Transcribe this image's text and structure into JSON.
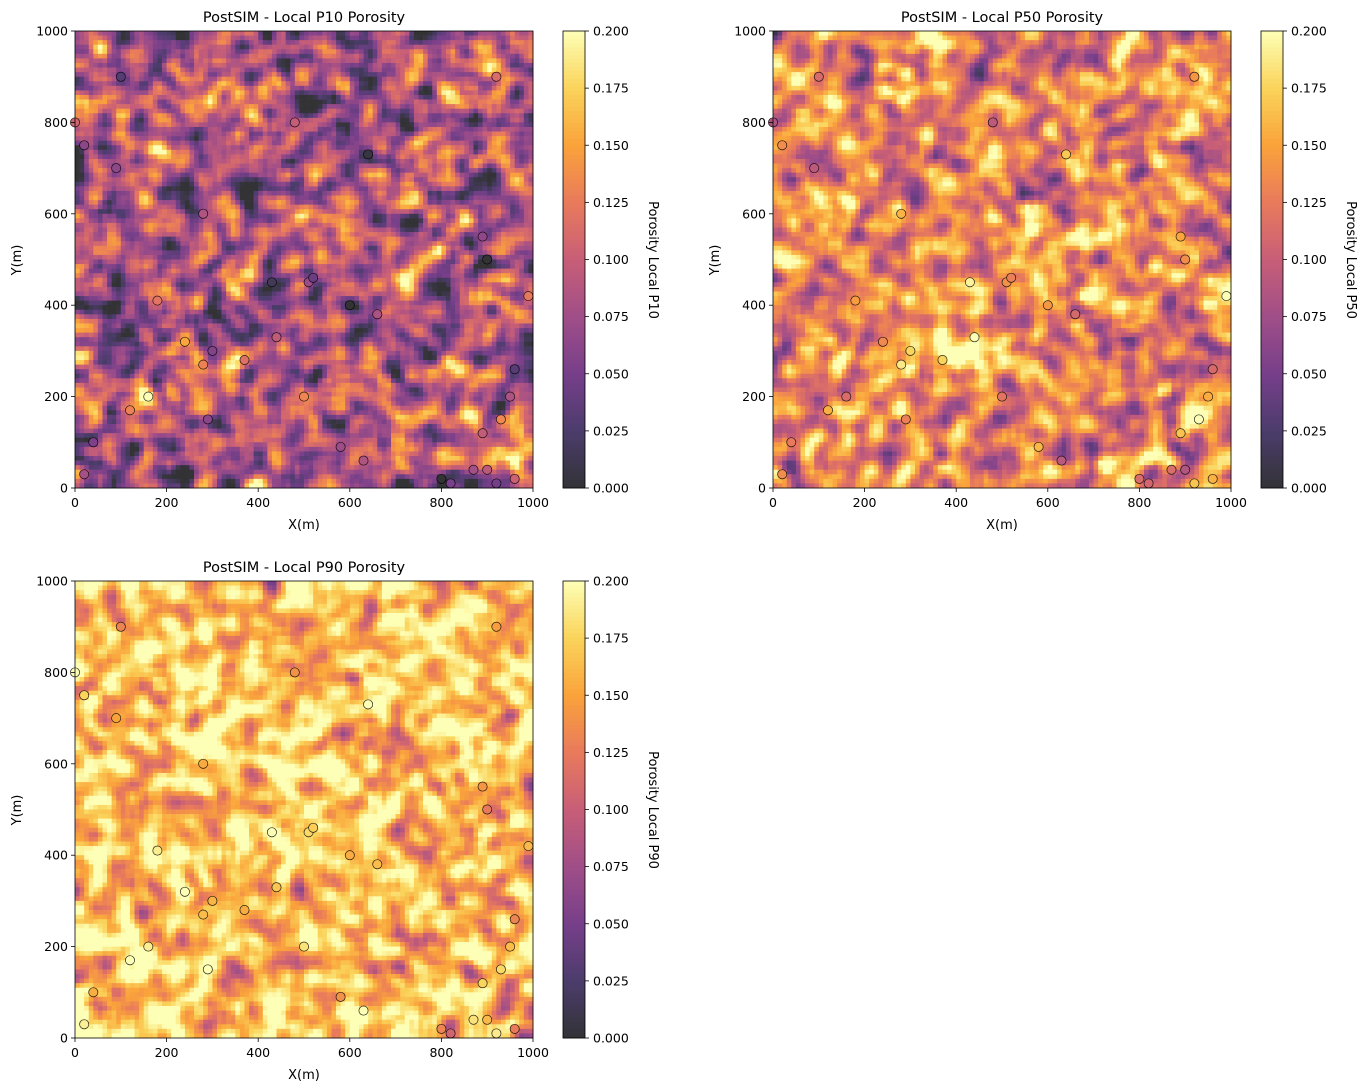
{
  "figure": {
    "colormap": "inferno",
    "map_alpha": 0.8,
    "grid_cells": 100
  },
  "wells": {
    "x": [
      100,
      0,
      20,
      90,
      280,
      890,
      900,
      990,
      430,
      510,
      600,
      660,
      240,
      440,
      500,
      930,
      900,
      960,
      370,
      290,
      800,
      820,
      870,
      890,
      960,
      640,
      950,
      580,
      630,
      920,
      20,
      920,
      160,
      120,
      40,
      180,
      280,
      480,
      300,
      520
    ],
    "y": [
      900,
      800,
      750,
      700,
      600,
      550,
      500,
      420,
      450,
      450,
      400,
      380,
      320,
      330,
      200,
      150,
      40,
      260,
      280,
      150,
      20,
      10,
      40,
      120,
      20,
      730,
      200,
      90,
      60,
      10,
      30,
      900,
      200,
      170,
      100,
      410,
      270,
      800,
      300,
      460
    ]
  },
  "chart_data": [
    {
      "type": "heatmap",
      "title": "PostSIM - Local P10 Porosity",
      "xlabel": "X(m)",
      "ylabel": "Y(m)",
      "xlim": [
        0,
        1000
      ],
      "ylim": [
        0,
        1000
      ],
      "x_ticks": [
        "0",
        "200",
        "400",
        "600",
        "800",
        "1000"
      ],
      "y_ticks": [
        "0",
        "200",
        "400",
        "600",
        "800",
        "1000"
      ],
      "colorbar_label": "Porosity Local P10",
      "colorbar_range": [
        0,
        0.2
      ],
      "colorbar_ticks": [
        "0.000",
        "0.025",
        "0.050",
        "0.075",
        "0.100",
        "0.125",
        "0.150",
        "0.175",
        "0.200"
      ],
      "field_mean": 0.085,
      "field_spread": 0.04,
      "seed": 11
    },
    {
      "type": "heatmap",
      "title": "PostSIM - Local P50 Porosity",
      "xlabel": "X(m)",
      "ylabel": "Y(m)",
      "xlim": [
        0,
        1000
      ],
      "ylim": [
        0,
        1000
      ],
      "x_ticks": [
        "0",
        "200",
        "400",
        "600",
        "800",
        "1000"
      ],
      "y_ticks": [
        "0",
        "200",
        "400",
        "600",
        "800",
        "1000"
      ],
      "colorbar_label": "Porosity Local P50",
      "colorbar_range": [
        0,
        0.2
      ],
      "colorbar_ticks": [
        "0.000",
        "0.025",
        "0.050",
        "0.075",
        "0.100",
        "0.125",
        "0.150",
        "0.175",
        "0.200"
      ],
      "field_mean": 0.13,
      "field_spread": 0.035,
      "seed": 23
    },
    {
      "type": "heatmap",
      "title": "PostSIM - Local P90 Porosity",
      "xlabel": "X(m)",
      "ylabel": "Y(m)",
      "xlim": [
        0,
        1000
      ],
      "ylim": [
        0,
        1000
      ],
      "x_ticks": [
        "0",
        "200",
        "400",
        "600",
        "800",
        "1000"
      ],
      "y_ticks": [
        "0",
        "200",
        "400",
        "600",
        "800",
        "1000"
      ],
      "colorbar_label": "Porosity Local P90",
      "colorbar_range": [
        0,
        0.2
      ],
      "colorbar_ticks": [
        "0.000",
        "0.025",
        "0.050",
        "0.075",
        "0.100",
        "0.125",
        "0.150",
        "0.175",
        "0.200"
      ],
      "field_mean": 0.165,
      "field_spread": 0.03,
      "seed": 37
    }
  ]
}
